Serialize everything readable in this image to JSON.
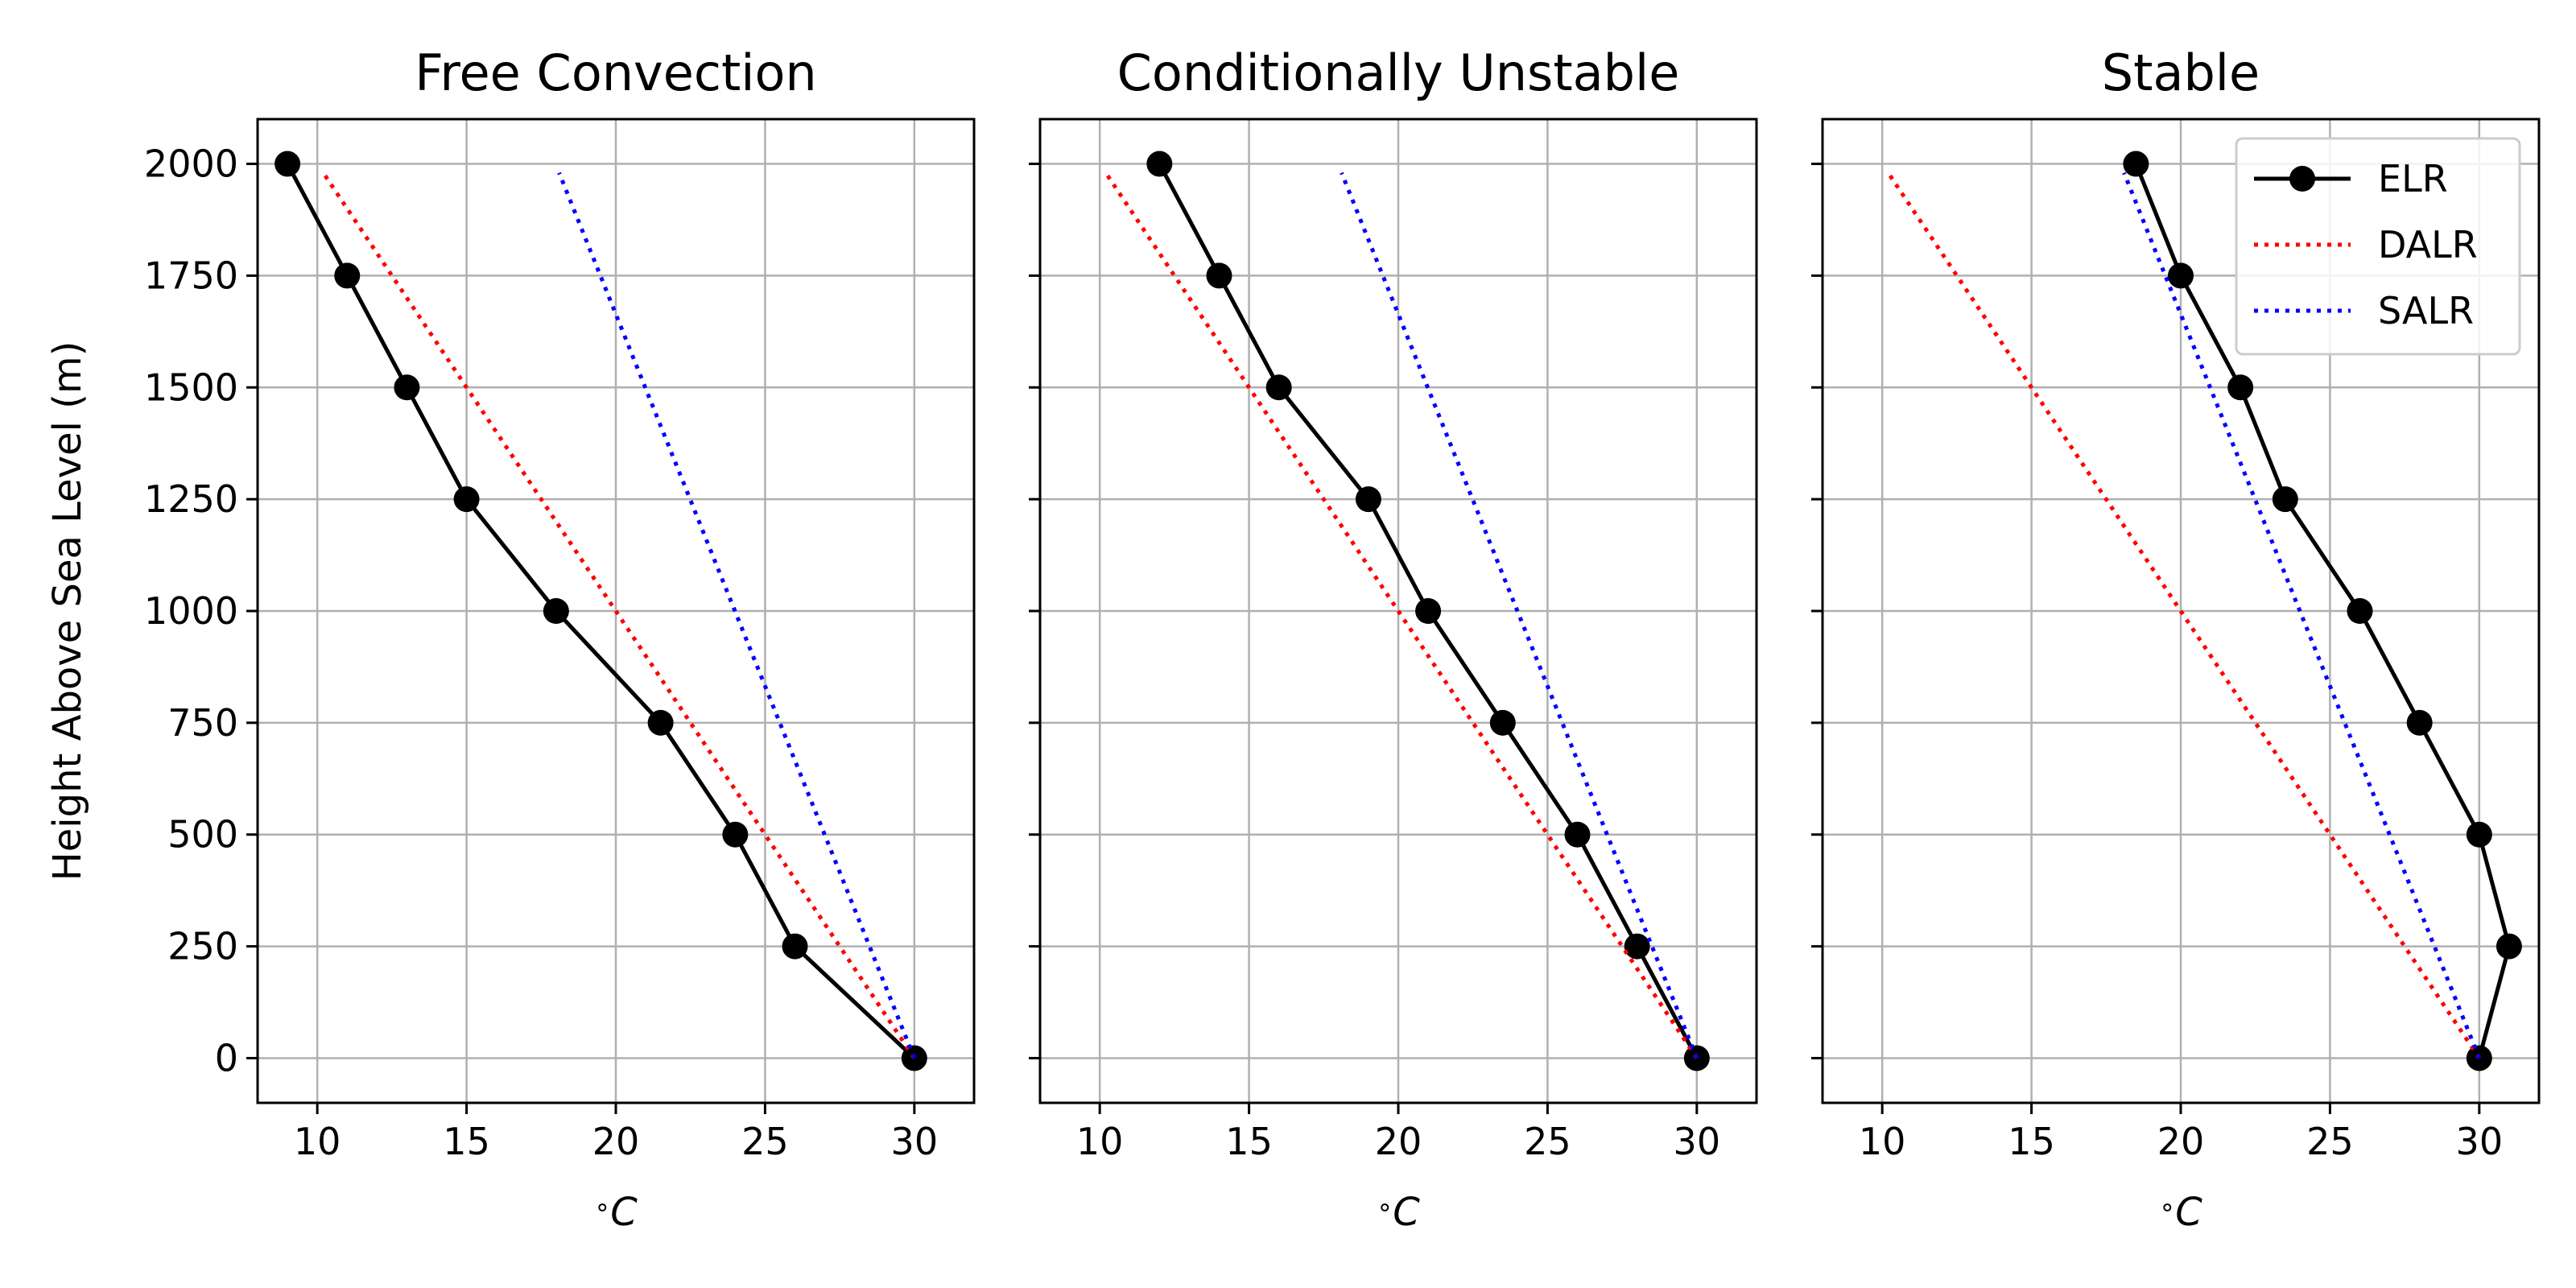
{
  "chart_data": [
    {
      "type": "line",
      "title": "Free Convection",
      "xlabel": "$^{\\circ}C$",
      "ylabel": "Height Above Sea Level (m)",
      "xlim": [
        8,
        32
      ],
      "ylim": [
        -100,
        2100
      ],
      "xticks": [
        10,
        15,
        20,
        25,
        30
      ],
      "yticks": [
        0,
        250,
        500,
        750,
        1000,
        1250,
        1500,
        1750,
        2000
      ],
      "grid": true,
      "series": [
        {
          "name": "ELR",
          "color": "#000000",
          "style": "solid-marker",
          "x": [
            30,
            26,
            24,
            21.5,
            18,
            15,
            13,
            11,
            9
          ],
          "y": [
            0,
            250,
            500,
            750,
            1000,
            1250,
            1500,
            1750,
            2000
          ]
        },
        {
          "name": "DALR",
          "color": "#ff0000",
          "style": "dotted",
          "x": [
            30,
            10.2
          ],
          "y": [
            0,
            1980
          ]
        },
        {
          "name": "SALR",
          "color": "#0000ff",
          "style": "dotted",
          "x": [
            30,
            18.1
          ],
          "y": [
            0,
            1980
          ]
        }
      ]
    },
    {
      "type": "line",
      "title": "Conditionally Unstable",
      "xlabel": "$^{\\circ}C$",
      "xlim": [
        8,
        32
      ],
      "ylim": [
        -100,
        2100
      ],
      "xticks": [
        10,
        15,
        20,
        25,
        30
      ],
      "grid": true,
      "series": [
        {
          "name": "ELR",
          "color": "#000000",
          "style": "solid-marker",
          "x": [
            30,
            28,
            26,
            23.5,
            21,
            19,
            16,
            14,
            12
          ],
          "y": [
            0,
            250,
            500,
            750,
            1000,
            1250,
            1500,
            1750,
            2000
          ]
        },
        {
          "name": "DALR",
          "color": "#ff0000",
          "style": "dotted",
          "x": [
            30,
            10.2
          ],
          "y": [
            0,
            1980
          ]
        },
        {
          "name": "SALR",
          "color": "#0000ff",
          "style": "dotted",
          "x": [
            30,
            18.1
          ],
          "y": [
            0,
            1980
          ]
        }
      ]
    },
    {
      "type": "line",
      "title": "Stable",
      "xlabel": "$^{\\circ}C$",
      "xlim": [
        8,
        32
      ],
      "ylim": [
        -100,
        2100
      ],
      "xticks": [
        10,
        15,
        20,
        25,
        30
      ],
      "grid": true,
      "legend": "top-right",
      "series": [
        {
          "name": "ELR",
          "color": "#000000",
          "style": "solid-marker",
          "x": [
            30,
            31,
            30,
            28,
            26,
            23.5,
            22,
            20,
            18.5
          ],
          "y": [
            0,
            250,
            500,
            750,
            1000,
            1250,
            1500,
            1750,
            2000
          ]
        },
        {
          "name": "DALR",
          "color": "#ff0000",
          "style": "dotted",
          "x": [
            30,
            10.2
          ],
          "y": [
            0,
            1980
          ]
        },
        {
          "name": "SALR",
          "color": "#0000ff",
          "style": "dotted",
          "x": [
            30,
            18.1
          ],
          "y": [
            0,
            1980
          ]
        }
      ]
    }
  ]
}
